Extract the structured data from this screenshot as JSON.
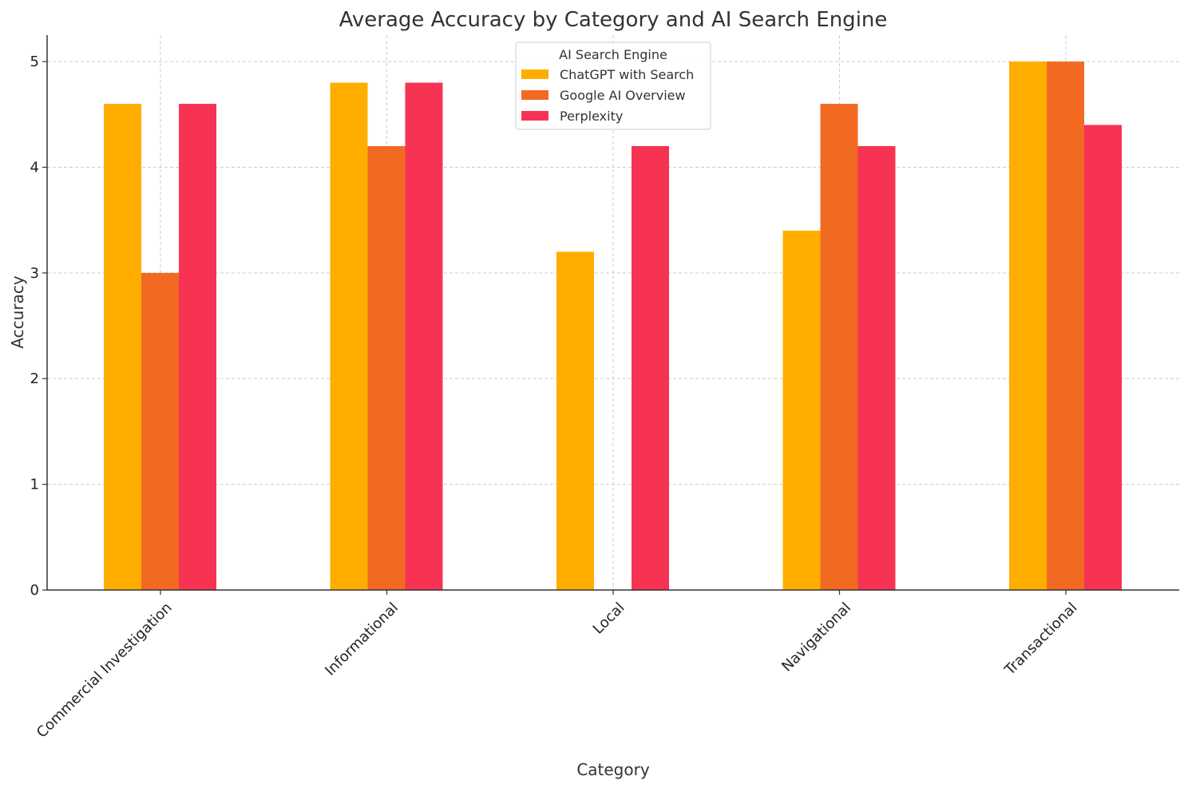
{
  "chart_data": {
    "type": "bar",
    "title": "Average Accuracy by Category and AI Search Engine",
    "xlabel": "Category",
    "ylabel": "Accuracy",
    "categories": [
      "Commercial Investigation",
      "Informational",
      "Local",
      "Navigational",
      "Transactional"
    ],
    "series": [
      {
        "name": "ChatGPT with Search",
        "color": "#FFAE00",
        "values": [
          4.6,
          4.8,
          3.2,
          3.4,
          5.0
        ]
      },
      {
        "name": "Google AI Overview",
        "color": "#F26A21",
        "values": [
          3.0,
          4.2,
          0,
          4.6,
          5.0
        ]
      },
      {
        "name": "Perplexity",
        "color": "#F73353",
        "values": [
          4.6,
          4.8,
          4.2,
          4.2,
          4.4
        ]
      }
    ],
    "ylim": [
      0,
      5.25
    ],
    "yticks": [
      0,
      1,
      2,
      3,
      4,
      5
    ],
    "grid": true,
    "legend": {
      "title": "AI Search Engine",
      "position": "top-center"
    }
  }
}
